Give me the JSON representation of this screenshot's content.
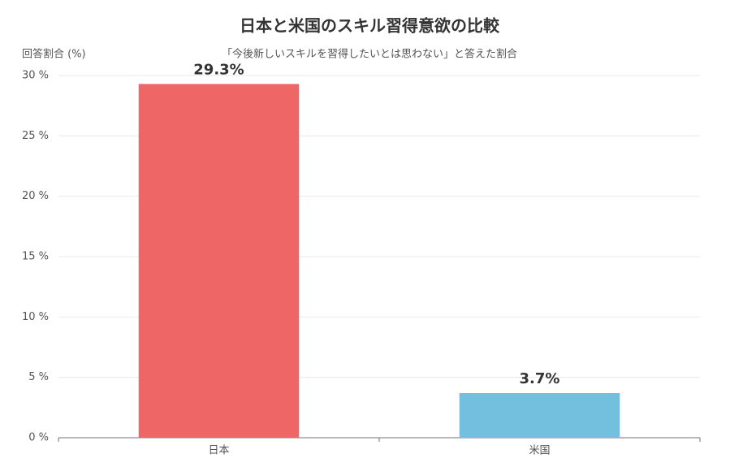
{
  "chart_data": {
    "type": "bar",
    "title": "日本と米国のスキル習得意欲の比較",
    "subtitle": "「今後新しいスキルを習得したいとは思わない」と答えた割合",
    "y_label": "回答割合 (%)",
    "categories": [
      "日本",
      "米国"
    ],
    "values": [
      29.3,
      3.7
    ],
    "value_labels": [
      "29.3%",
      "3.7%"
    ],
    "colors": [
      "#ee6666",
      "#73c0de"
    ],
    "ylim": [
      0,
      30
    ],
    "yticks": [
      {
        "value": 0,
        "label": "0 %"
      },
      {
        "value": 5,
        "label": "5 %"
      },
      {
        "value": 10,
        "label": "10 %"
      },
      {
        "value": 15,
        "label": "15 %"
      },
      {
        "value": 20,
        "label": "20 %"
      },
      {
        "value": 25,
        "label": "25 %"
      },
      {
        "value": 30,
        "label": "30 %"
      }
    ],
    "grid": true
  }
}
